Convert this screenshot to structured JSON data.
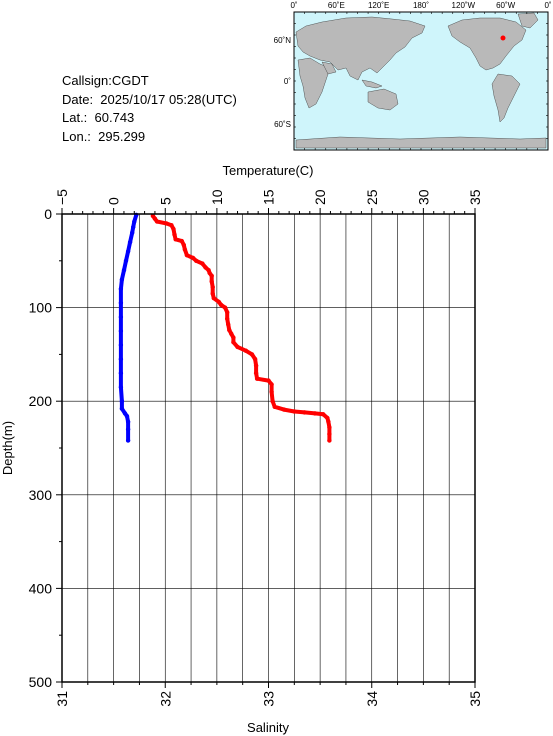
{
  "info": {
    "callsign": "Callsign:CGDT",
    "date": "Date:  2025/10/17 05:28(UTC)",
    "lat": "Lat.:  60.743",
    "lon": "Lon.:  295.299"
  },
  "map": {
    "lon_labels": [
      "0˚",
      "60˚E",
      "120˚E",
      "180˚",
      "120˚W",
      "60˚W",
      "0˚"
    ],
    "lat_labels": [
      "60˚N",
      "0˚",
      "60˚S"
    ],
    "ocean_color": "#cff5fb",
    "land_color": "#b9b9b9",
    "marker_color": "#ff0000"
  },
  "chart_data": {
    "type": "line",
    "grid": true,
    "y": {
      "label": "Depth(m)",
      "range": [
        0,
        500
      ],
      "ticks": [
        0,
        100,
        200,
        300,
        400,
        500
      ],
      "tick_labels": [
        "0",
        "100",
        "200",
        "300",
        "400",
        "500"
      ],
      "inverted": true
    },
    "x_top": {
      "label": "Temperature(C)",
      "range": [
        -5,
        35
      ],
      "ticks": [
        -5,
        0,
        5,
        10,
        15,
        20,
        25,
        30,
        35
      ],
      "tick_labels": [
        "−5",
        "0",
        "5",
        "10",
        "15",
        "20",
        "25",
        "30",
        "35"
      ]
    },
    "x_bottom": {
      "label": "Salinity",
      "range": [
        31,
        35
      ],
      "ticks": [
        31,
        32,
        33,
        34,
        35
      ],
      "tick_labels": [
        "31",
        "32",
        "33",
        "34",
        "35"
      ]
    },
    "series": [
      {
        "axis": "top",
        "color": "#ff0000",
        "points": [
          [
            3.8,
            2
          ],
          [
            4.0,
            5
          ],
          [
            4.2,
            8
          ],
          [
            5.1,
            10
          ],
          [
            5.6,
            12
          ],
          [
            5.8,
            16
          ],
          [
            5.9,
            22
          ],
          [
            6.0,
            27
          ],
          [
            6.6,
            29
          ],
          [
            6.8,
            33
          ],
          [
            6.9,
            38
          ],
          [
            7.1,
            44
          ],
          [
            7.7,
            47
          ],
          [
            8.0,
            50
          ],
          [
            8.6,
            53
          ],
          [
            8.9,
            57
          ],
          [
            9.2,
            60
          ],
          [
            9.3,
            63
          ],
          [
            9.5,
            66
          ],
          [
            9.5,
            72
          ],
          [
            9.6,
            78
          ],
          [
            9.6,
            85
          ],
          [
            9.7,
            90
          ],
          [
            10.2,
            94
          ],
          [
            10.4,
            97
          ],
          [
            10.8,
            100
          ],
          [
            11.0,
            105
          ],
          [
            11.0,
            112
          ],
          [
            11.1,
            118
          ],
          [
            11.2,
            124
          ],
          [
            11.4,
            128
          ],
          [
            11.6,
            132
          ],
          [
            11.6,
            137
          ],
          [
            12.0,
            142
          ],
          [
            12.8,
            146
          ],
          [
            13.4,
            150
          ],
          [
            13.7,
            155
          ],
          [
            13.8,
            162
          ],
          [
            13.8,
            170
          ],
          [
            13.9,
            176
          ],
          [
            15.0,
            178
          ],
          [
            15.3,
            182
          ],
          [
            15.3,
            190
          ],
          [
            15.4,
            200
          ],
          [
            15.6,
            206
          ],
          [
            16.5,
            209
          ],
          [
            17.5,
            211
          ],
          [
            18.5,
            212
          ],
          [
            19.5,
            213
          ],
          [
            20.3,
            214
          ],
          [
            20.7,
            218
          ],
          [
            20.8,
            222
          ],
          [
            20.9,
            228
          ],
          [
            20.9,
            235
          ],
          [
            20.9,
            242
          ]
        ]
      },
      {
        "axis": "bottom",
        "color": "#0000ff",
        "points": [
          [
            31.72,
            1
          ],
          [
            31.7,
            8
          ],
          [
            31.69,
            14
          ],
          [
            31.68,
            20
          ],
          [
            31.66,
            30
          ],
          [
            31.64,
            40
          ],
          [
            31.62,
            50
          ],
          [
            31.6,
            60
          ],
          [
            31.58,
            70
          ],
          [
            31.57,
            80
          ],
          [
            31.57,
            95
          ],
          [
            31.57,
            110
          ],
          [
            31.57,
            125
          ],
          [
            31.57,
            140
          ],
          [
            31.57,
            155
          ],
          [
            31.57,
            170
          ],
          [
            31.57,
            185
          ],
          [
            31.58,
            200
          ],
          [
            31.58,
            208
          ],
          [
            31.61,
            213
          ],
          [
            31.63,
            216
          ],
          [
            31.64,
            222
          ],
          [
            31.64,
            230
          ],
          [
            31.64,
            242
          ]
        ]
      }
    ]
  }
}
